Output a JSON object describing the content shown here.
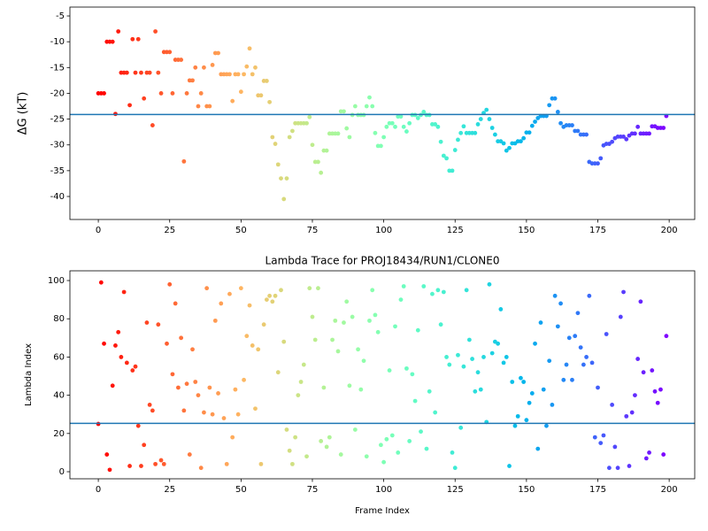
{
  "chart_data": [
    {
      "type": "scatter",
      "y_label": "ΔG (kT)",
      "x": [
        0,
        1,
        2,
        3,
        4,
        5,
        6,
        7,
        8,
        9,
        10,
        11,
        12,
        13,
        14,
        15,
        16,
        17,
        18,
        19,
        20,
        21,
        22,
        23,
        24,
        25,
        26,
        27,
        28,
        29,
        30,
        31,
        32,
        33,
        34,
        35,
        36,
        37,
        38,
        39,
        40,
        41,
        42,
        43,
        44,
        45,
        46,
        47,
        48,
        49,
        50,
        51,
        52,
        53,
        54,
        55,
        56,
        57,
        58,
        59,
        60,
        61,
        62,
        63,
        64,
        65,
        66,
        67,
        68,
        69,
        70,
        71,
        72,
        73,
        74,
        75,
        76,
        77,
        78,
        79,
        80,
        81,
        82,
        83,
        84,
        85,
        86,
        87,
        88,
        89,
        90,
        91,
        92,
        93,
        94,
        95,
        96,
        97,
        98,
        99,
        100,
        101,
        102,
        103,
        104,
        105,
        106,
        107,
        108,
        109,
        110,
        111,
        112,
        113,
        114,
        115,
        116,
        117,
        118,
        119,
        120,
        121,
        122,
        123,
        124,
        125,
        126,
        127,
        128,
        129,
        130,
        131,
        132,
        133,
        134,
        135,
        136,
        137,
        138,
        139,
        140,
        141,
        142,
        143,
        144,
        145,
        146,
        147,
        148,
        149,
        150,
        151,
        152,
        153,
        154,
        155,
        156,
        157,
        158,
        159,
        160,
        161,
        162,
        163,
        164,
        165,
        166,
        167,
        168,
        169,
        170,
        171,
        172,
        173,
        174,
        175,
        176,
        177,
        178,
        179,
        180,
        181,
        182,
        183,
        184,
        185,
        186,
        187,
        188,
        189,
        190,
        191,
        192,
        193,
        194,
        195,
        196,
        197,
        198,
        199
      ],
      "values": [
        -20,
        -20,
        -20,
        -10,
        -10,
        -10,
        -24,
        -8,
        -16,
        -16,
        -16,
        -22.3,
        -9.5,
        -16,
        -9.5,
        -16,
        -21,
        -16,
        -16,
        -26.2,
        -8,
        -16,
        -20,
        -12,
        -12,
        -12,
        -20,
        -13.5,
        -13.5,
        -13.5,
        -33.2,
        -20,
        -17.5,
        -17.5,
        -15,
        -22.5,
        -20,
        -15,
        -22.5,
        -22.5,
        -14.5,
        -12.2,
        -12.2,
        -16.3,
        -16.3,
        -16.3,
        -16.3,
        -21.5,
        -16.3,
        -16.3,
        -19.7,
        -16.3,
        -14.8,
        -11.3,
        -16.3,
        -15,
        -20.4,
        -20.4,
        -17.6,
        -17.6,
        -21.7,
        -28.5,
        -29.8,
        -33.8,
        -36.5,
        -40.5,
        -36.5,
        -28.5,
        -27.3,
        -25.8,
        -25.8,
        -25.8,
        -25.8,
        -25.8,
        -24.6,
        -30,
        -33.3,
        -33.3,
        -35.4,
        -31.1,
        -31.1,
        -27.8,
        -27.8,
        -27.8,
        -27.8,
        -23.5,
        -23.5,
        -26.8,
        -28.5,
        -24.2,
        -22.5,
        -24.2,
        -24.2,
        -24.2,
        -22.5,
        -20.8,
        -22.5,
        -27.7,
        -30.2,
        -30.2,
        -28.5,
        -26.5,
        -25.8,
        -25.8,
        -26.5,
        -24.5,
        -24.5,
        -26.5,
        -27.4,
        -25.8,
        -24.2,
        -24.2,
        -24.8,
        -24.2,
        -23.6,
        -24.2,
        -24.2,
        -26,
        -26,
        -26.5,
        -29.4,
        -32.1,
        -32.6,
        -35,
        -35,
        -31,
        -29,
        -27.7,
        -26.4,
        -27.7,
        -27.7,
        -27.7,
        -27.7,
        -26,
        -25,
        -23.8,
        -23.2,
        -25,
        -26.7,
        -28,
        -29.3,
        -29.3,
        -29.7,
        -31.1,
        -30.6,
        -29.7,
        -29.7,
        -29.3,
        -29.3,
        -28.7,
        -27.6,
        -27.6,
        -26.3,
        -25.5,
        -24.8,
        -24.4,
        -24.4,
        -24.4,
        -22.3,
        -21,
        -21,
        -23.6,
        -25.8,
        -26.5,
        -26.2,
        -26.2,
        -26.2,
        -27.3,
        -27.3,
        -28,
        -28,
        -28,
        -33.3,
        -33.6,
        -33.6,
        -33.6,
        -32.6,
        -30.1,
        -29.8,
        -29.8,
        -29.4,
        -28.7,
        -28.4,
        -28.4,
        -28.4,
        -28.9,
        -28.2,
        -27.8,
        -27.8,
        -26.5,
        -27.8,
        -27.8,
        -27.8,
        -27.8,
        -26.4,
        -26.4,
        -26.7,
        -26.7,
        -26.7,
        -24.4
      ],
      "colormap": "rainbow_r",
      "hline": -24.1,
      "hline_color": "#1f77b4",
      "xlim": [
        -9.95,
        208.95
      ],
      "xticks": [
        0,
        25,
        50,
        75,
        100,
        125,
        150,
        175,
        200
      ],
      "ylim": [
        -44.46,
        -3.28
      ],
      "yticks": [
        -40,
        -35,
        -30,
        -25,
        -20,
        -15,
        -10,
        -5
      ]
    },
    {
      "type": "scatter",
      "title": "Lambda Trace for PROJ18434/RUN1/CLONE0",
      "x_label": "Frame Index",
      "y_label": "Lambda Index",
      "x": [
        0,
        1,
        2,
        3,
        4,
        5,
        6,
        7,
        8,
        9,
        10,
        11,
        12,
        13,
        14,
        15,
        16,
        17,
        18,
        19,
        20,
        21,
        22,
        23,
        24,
        25,
        26,
        27,
        28,
        29,
        30,
        31,
        32,
        33,
        34,
        35,
        36,
        37,
        38,
        39,
        40,
        41,
        42,
        43,
        44,
        45,
        46,
        47,
        48,
        49,
        50,
        51,
        52,
        53,
        54,
        55,
        56,
        57,
        58,
        59,
        60,
        61,
        62,
        63,
        64,
        65,
        66,
        67,
        68,
        69,
        70,
        71,
        72,
        73,
        74,
        75,
        76,
        77,
        78,
        79,
        80,
        81,
        82,
        83,
        84,
        85,
        86,
        87,
        88,
        89,
        90,
        91,
        92,
        93,
        94,
        95,
        96,
        97,
        98,
        99,
        100,
        101,
        102,
        103,
        104,
        105,
        106,
        107,
        108,
        109,
        110,
        111,
        112,
        113,
        114,
        115,
        116,
        117,
        118,
        119,
        120,
        121,
        122,
        123,
        124,
        125,
        126,
        127,
        128,
        129,
        130,
        131,
        132,
        133,
        134,
        135,
        136,
        137,
        138,
        139,
        140,
        141,
        142,
        143,
        144,
        145,
        146,
        147,
        148,
        149,
        150,
        151,
        152,
        153,
        154,
        155,
        156,
        157,
        158,
        159,
        160,
        161,
        162,
        163,
        164,
        165,
        166,
        167,
        168,
        169,
        170,
        171,
        172,
        173,
        174,
        175,
        176,
        177,
        178,
        179,
        180,
        181,
        182,
        183,
        184,
        185,
        186,
        187,
        188,
        189,
        190,
        191,
        192,
        193,
        194,
        195,
        196,
        197,
        198,
        199
      ],
      "values": [
        25,
        99,
        67,
        9,
        1,
        45,
        66,
        73,
        60,
        94,
        57,
        3,
        53,
        55,
        24,
        3,
        14,
        78,
        35,
        32,
        4,
        77,
        6,
        4,
        67,
        98,
        51,
        88,
        44,
        70,
        32,
        46,
        9,
        64,
        47,
        40,
        2,
        31,
        96,
        44,
        30,
        79,
        41,
        88,
        28,
        4,
        93,
        18,
        43,
        30,
        96,
        48,
        71,
        87,
        66,
        33,
        64,
        4,
        77,
        90,
        92,
        89,
        92,
        52,
        95,
        68,
        22,
        11,
        4,
        18,
        40,
        47,
        56,
        8,
        96,
        81,
        69,
        96,
        16,
        44,
        13,
        18,
        69,
        79,
        63,
        9,
        78,
        89,
        45,
        81,
        22,
        64,
        43,
        58,
        8,
        79,
        95,
        82,
        73,
        14,
        5,
        17,
        53,
        19,
        76,
        10,
        90,
        97,
        54,
        16,
        51,
        37,
        74,
        21,
        97,
        12,
        42,
        93,
        31,
        95,
        77,
        94,
        60,
        56,
        10,
        2,
        61,
        23,
        55,
        95,
        69,
        59,
        42,
        52,
        43,
        60,
        26,
        98,
        62,
        68,
        67,
        85,
        57,
        60,
        3,
        47,
        24,
        29,
        49,
        47,
        27,
        36,
        41,
        67,
        12,
        78,
        43,
        24,
        58,
        35,
        92,
        76,
        88,
        48,
        56,
        70,
        48,
        71,
        83,
        65,
        56,
        60,
        92,
        57,
        18,
        44,
        15,
        19,
        72,
        2,
        35,
        13,
        2,
        81,
        94,
        29,
        3,
        31,
        40,
        59,
        89,
        52,
        7,
        10,
        53,
        42,
        36,
        43,
        9,
        71
      ],
      "colormap": "rainbow_r",
      "hline": 25.3,
      "hline_color": "#1f77b4",
      "xlim": [
        -9.95,
        208.95
      ],
      "xticks": [
        0,
        25,
        50,
        75,
        100,
        125,
        150,
        175,
        200
      ],
      "ylim": [
        -3.7,
        105.1
      ],
      "yticks": [
        0,
        20,
        40,
        60,
        80,
        100
      ]
    }
  ]
}
